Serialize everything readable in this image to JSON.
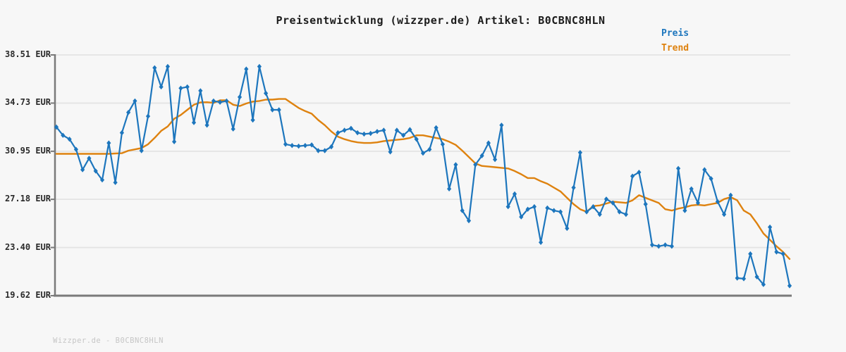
{
  "header": {
    "title": "Preisentwicklung (wizzper.de) Artikel: B0CBNC8HLN"
  },
  "legend": {
    "preis": {
      "label": "Preis",
      "color": "#1d76bd"
    },
    "trend": {
      "label": "Trend",
      "color": "#de820f"
    }
  },
  "footer": {
    "watermark": "Wizzper.de - B0CBNC8HLN"
  },
  "colors": {
    "background": "#f7f7f7",
    "grid": "#e4e4e4",
    "axis": "#7a7a7a",
    "price": "#1d76bd",
    "trend": "#de820f"
  },
  "chart_data": {
    "type": "line",
    "title": "Preisentwicklung (wizzper.de) Artikel: B0CBNC8HLN",
    "xlabel": "",
    "ylabel": "",
    "ylim": [
      19.62,
      38.51
    ],
    "grid": true,
    "legend_position": "top-right",
    "x_tick_labels": [],
    "y_ticks": [
      {
        "label": "38.51 EUR",
        "value": 38.51,
        "gridline": true
      },
      {
        "label": "34.73 EUR",
        "value": 34.73,
        "gridline": true
      },
      {
        "label": "30.95 EUR",
        "value": 30.95,
        "gridline": true
      },
      {
        "label": "27.18 EUR",
        "value": 27.18,
        "gridline": true
      },
      {
        "label": "23.40 EUR",
        "value": 23.4,
        "gridline": true
      },
      {
        "label": "19.62 EUR",
        "value": 19.62,
        "gridline": false
      }
    ],
    "series": [
      {
        "name": "Trend",
        "color": "#de820f",
        "markers": false,
        "values": [
          30.75,
          30.75,
          30.75,
          30.75,
          30.75,
          30.75,
          30.75,
          30.75,
          30.75,
          30.78,
          30.8,
          31.0,
          31.1,
          31.2,
          31.5,
          32.0,
          32.55,
          32.9,
          33.5,
          33.8,
          34.2,
          34.6,
          34.78,
          34.8,
          34.75,
          34.95,
          34.95,
          34.6,
          34.5,
          34.7,
          34.85,
          34.9,
          35.0,
          35.0,
          35.05,
          35.05,
          34.7,
          34.35,
          34.1,
          33.9,
          33.4,
          33.0,
          32.5,
          32.1,
          31.9,
          31.75,
          31.65,
          31.6,
          31.6,
          31.65,
          31.75,
          31.8,
          31.85,
          31.9,
          32.0,
          32.2,
          32.2,
          32.1,
          32.0,
          31.9,
          31.7,
          31.45,
          31.0,
          30.5,
          30.0,
          29.8,
          29.75,
          29.7,
          29.65,
          29.6,
          29.4,
          29.15,
          28.85,
          28.85,
          28.6,
          28.4,
          28.1,
          27.8,
          27.3,
          26.8,
          26.4,
          26.2,
          26.65,
          26.7,
          26.85,
          27.0,
          26.95,
          26.9,
          27.1,
          27.5,
          27.3,
          27.1,
          26.9,
          26.4,
          26.3,
          26.45,
          26.55,
          26.7,
          26.75,
          26.7,
          26.8,
          26.9,
          27.2,
          27.35,
          27.1,
          26.3,
          26.0,
          25.3,
          24.5,
          24.0,
          23.5,
          23.05,
          22.5
        ]
      },
      {
        "name": "Preis",
        "color": "#1d76bd",
        "markers": true,
        "values": [
          32.85,
          32.2,
          31.9,
          31.1,
          29.5,
          30.4,
          29.4,
          28.7,
          31.6,
          28.5,
          32.4,
          34.0,
          34.9,
          31.0,
          33.7,
          37.5,
          36.0,
          37.6,
          31.7,
          35.9,
          36.0,
          33.2,
          35.7,
          33.0,
          34.9,
          34.8,
          34.9,
          32.7,
          35.2,
          37.4,
          33.4,
          37.6,
          35.5,
          34.2,
          34.2,
          31.5,
          31.4,
          31.35,
          31.4,
          31.45,
          31.0,
          31.0,
          31.3,
          32.4,
          32.6,
          32.75,
          32.4,
          32.3,
          32.35,
          32.5,
          32.6,
          30.9,
          32.6,
          32.2,
          32.65,
          31.9,
          30.8,
          31.1,
          32.8,
          31.5,
          28.0,
          29.9,
          26.3,
          25.5,
          29.9,
          30.6,
          31.6,
          30.3,
          33.0,
          26.6,
          27.6,
          25.8,
          26.4,
          26.6,
          23.8,
          26.5,
          26.3,
          26.2,
          24.9,
          28.1,
          30.85,
          26.2,
          26.6,
          26.0,
          27.2,
          26.9,
          26.2,
          26.0,
          29.0,
          29.3,
          26.8,
          23.6,
          23.5,
          23.6,
          23.5,
          29.6,
          26.3,
          28.0,
          26.9,
          29.5,
          28.8,
          27.0,
          26.0,
          27.5,
          21.0,
          20.95,
          22.9,
          21.1,
          20.5,
          25.0,
          23.05,
          22.9,
          20.4
        ]
      }
    ]
  }
}
